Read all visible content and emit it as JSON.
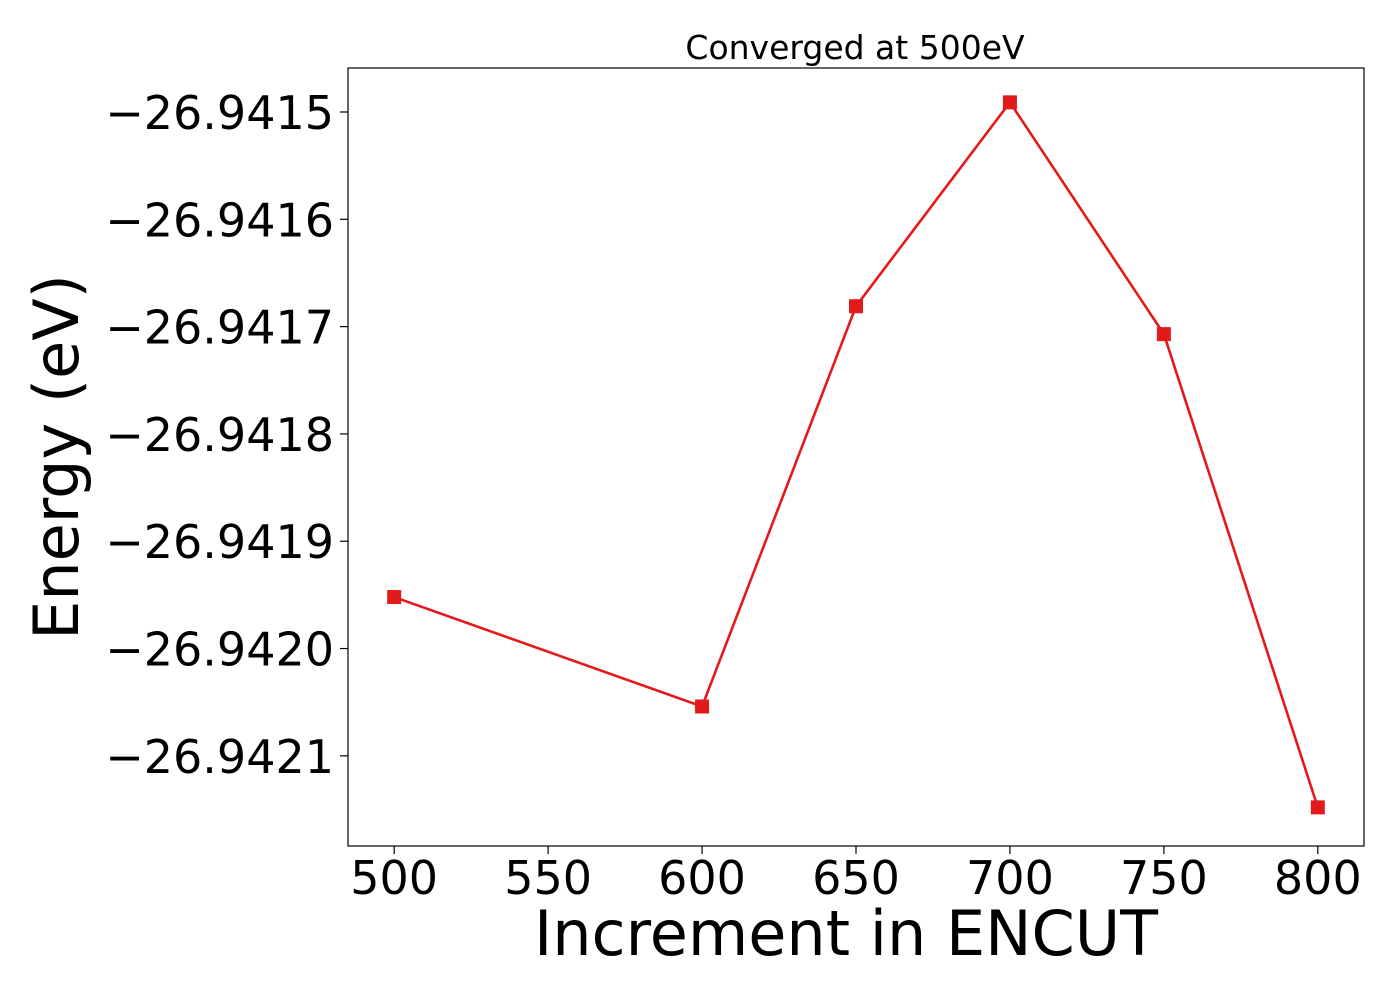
{
  "chart_data": {
    "type": "line",
    "title": "Converged at 500eV",
    "xlabel": "Increment in ENCUT",
    "ylabel": "Energy (eV)",
    "xlim": [
      485,
      815
    ],
    "ylim": [
      -26.942184,
      -26.941459
    ],
    "x_ticks": [
      500,
      550,
      600,
      650,
      700,
      750,
      800
    ],
    "x_tick_labels": [
      "500",
      "550",
      "600",
      "650",
      "700",
      "750",
      "800"
    ],
    "y_ticks": [
      -26.9415,
      -26.9416,
      -26.9417,
      -26.9418,
      -26.9419,
      -26.942,
      -26.9421
    ],
    "y_tick_labels": [
      "−26.9415",
      "−26.9416",
      "−26.9417",
      "−26.9418",
      "−26.9419",
      "−26.9420",
      "−26.9421"
    ],
    "grid": false,
    "series": [
      {
        "color": "#e31a1c",
        "marker": "square",
        "x": [
          500,
          600,
          650,
          700,
          750,
          800
        ],
        "y": [
          -26.941952,
          -26.942054,
          -26.941681,
          -26.941491,
          -26.941707,
          -26.942148
        ]
      }
    ]
  }
}
